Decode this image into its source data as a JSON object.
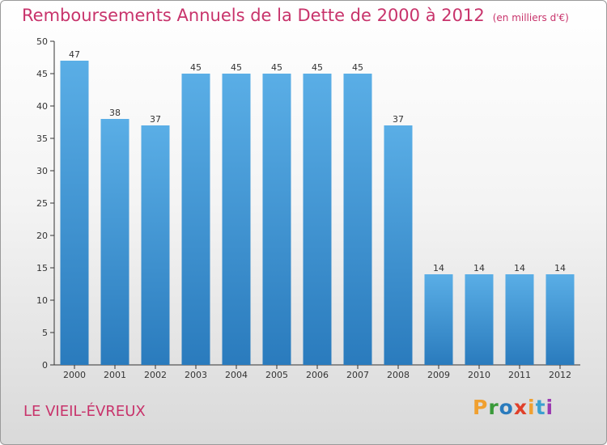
{
  "header": {
    "title": "Remboursements Annuels de la Dette de 2000 à 2012",
    "unit": "(en milliers d'€)"
  },
  "footer": {
    "commune": "LE VIEIL-ÉVREUX",
    "brand": "Proxiti"
  },
  "colors": {
    "title": "#c8336b",
    "bar_top": "#5aaee6",
    "bar_bottom": "#2a7bbd",
    "logo_letters": [
      "#f0a030",
      "#3a9a3a",
      "#2a7bbd",
      "#e0402a",
      "#f0a030",
      "#3aa0d0",
      "#9a3ab0"
    ]
  },
  "chart_data": {
    "type": "bar",
    "categories": [
      "2000",
      "2001",
      "2002",
      "2003",
      "2004",
      "2005",
      "2006",
      "2007",
      "2008",
      "2009",
      "2010",
      "2011",
      "2012"
    ],
    "values": [
      47,
      38,
      37,
      45,
      45,
      45,
      45,
      45,
      37,
      14,
      14,
      14,
      14
    ],
    "title": "Remboursements Annuels de la Dette de 2000 à 2012",
    "unit": "(en milliers d'€)",
    "ylim": [
      0,
      50
    ],
    "yticks": [
      0,
      5,
      10,
      15,
      20,
      25,
      30,
      35,
      40,
      45,
      50
    ],
    "grid": false,
    "data_labels": true
  }
}
